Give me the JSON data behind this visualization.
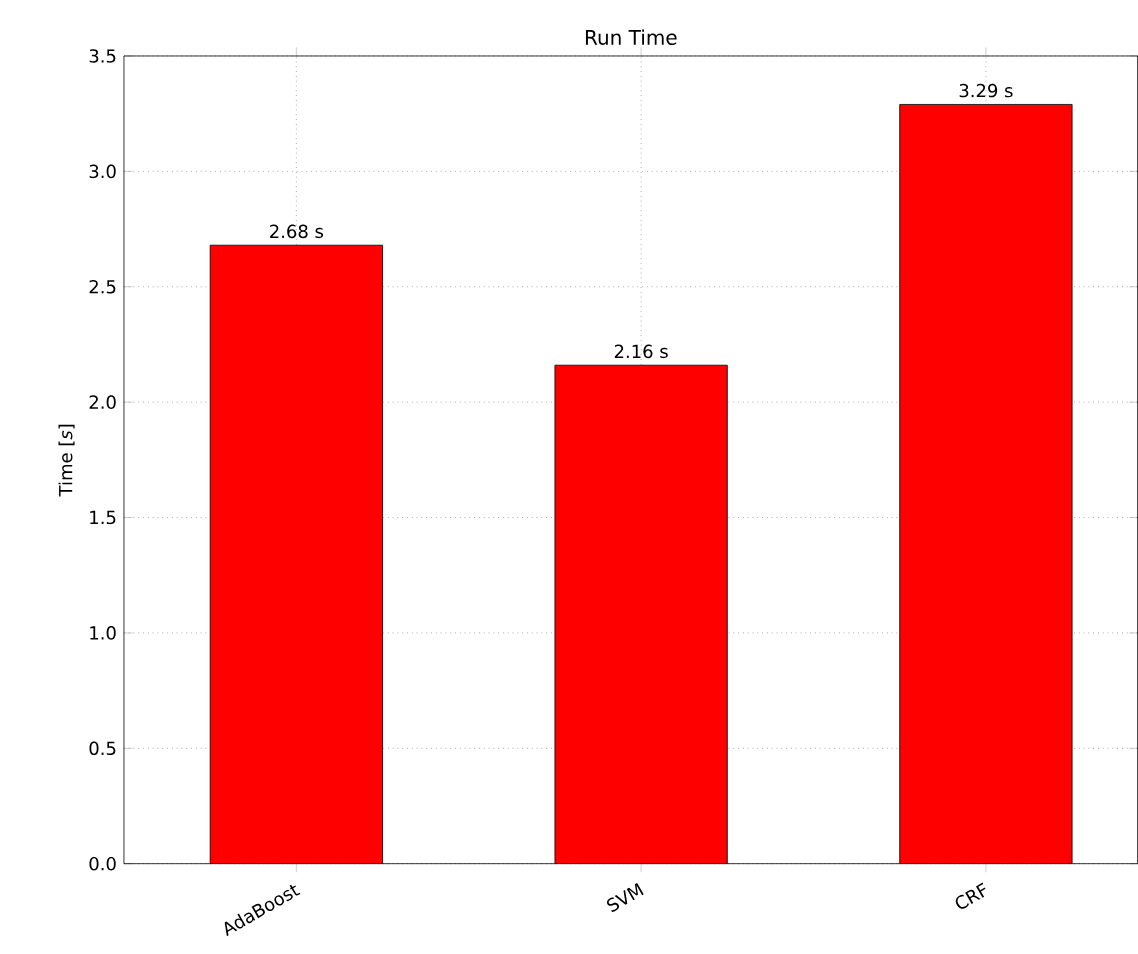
{
  "chart_data": {
    "type": "bar",
    "title": "Run Time",
    "ylabel": "Time [*s*]",
    "categories": [
      "AdaBoost",
      "SVM",
      "CRF"
    ],
    "values": [
      2.68,
      2.16,
      3.29
    ],
    "value_labels": [
      "2.68 s",
      "2.16 s",
      "3.29 s"
    ],
    "color": "#ff0000",
    "ylim": [
      0,
      3.5
    ],
    "yticks": [
      {
        "value": 0,
        "label": "0.0"
      },
      0.5,
      {
        "value": 1,
        "label": "1.0"
      },
      1.5,
      {
        "value": 2,
        "label": "2.0"
      },
      2.5,
      {
        "value": 3,
        "label": "3.0"
      },
      3.5
    ],
    "grid": true
  }
}
